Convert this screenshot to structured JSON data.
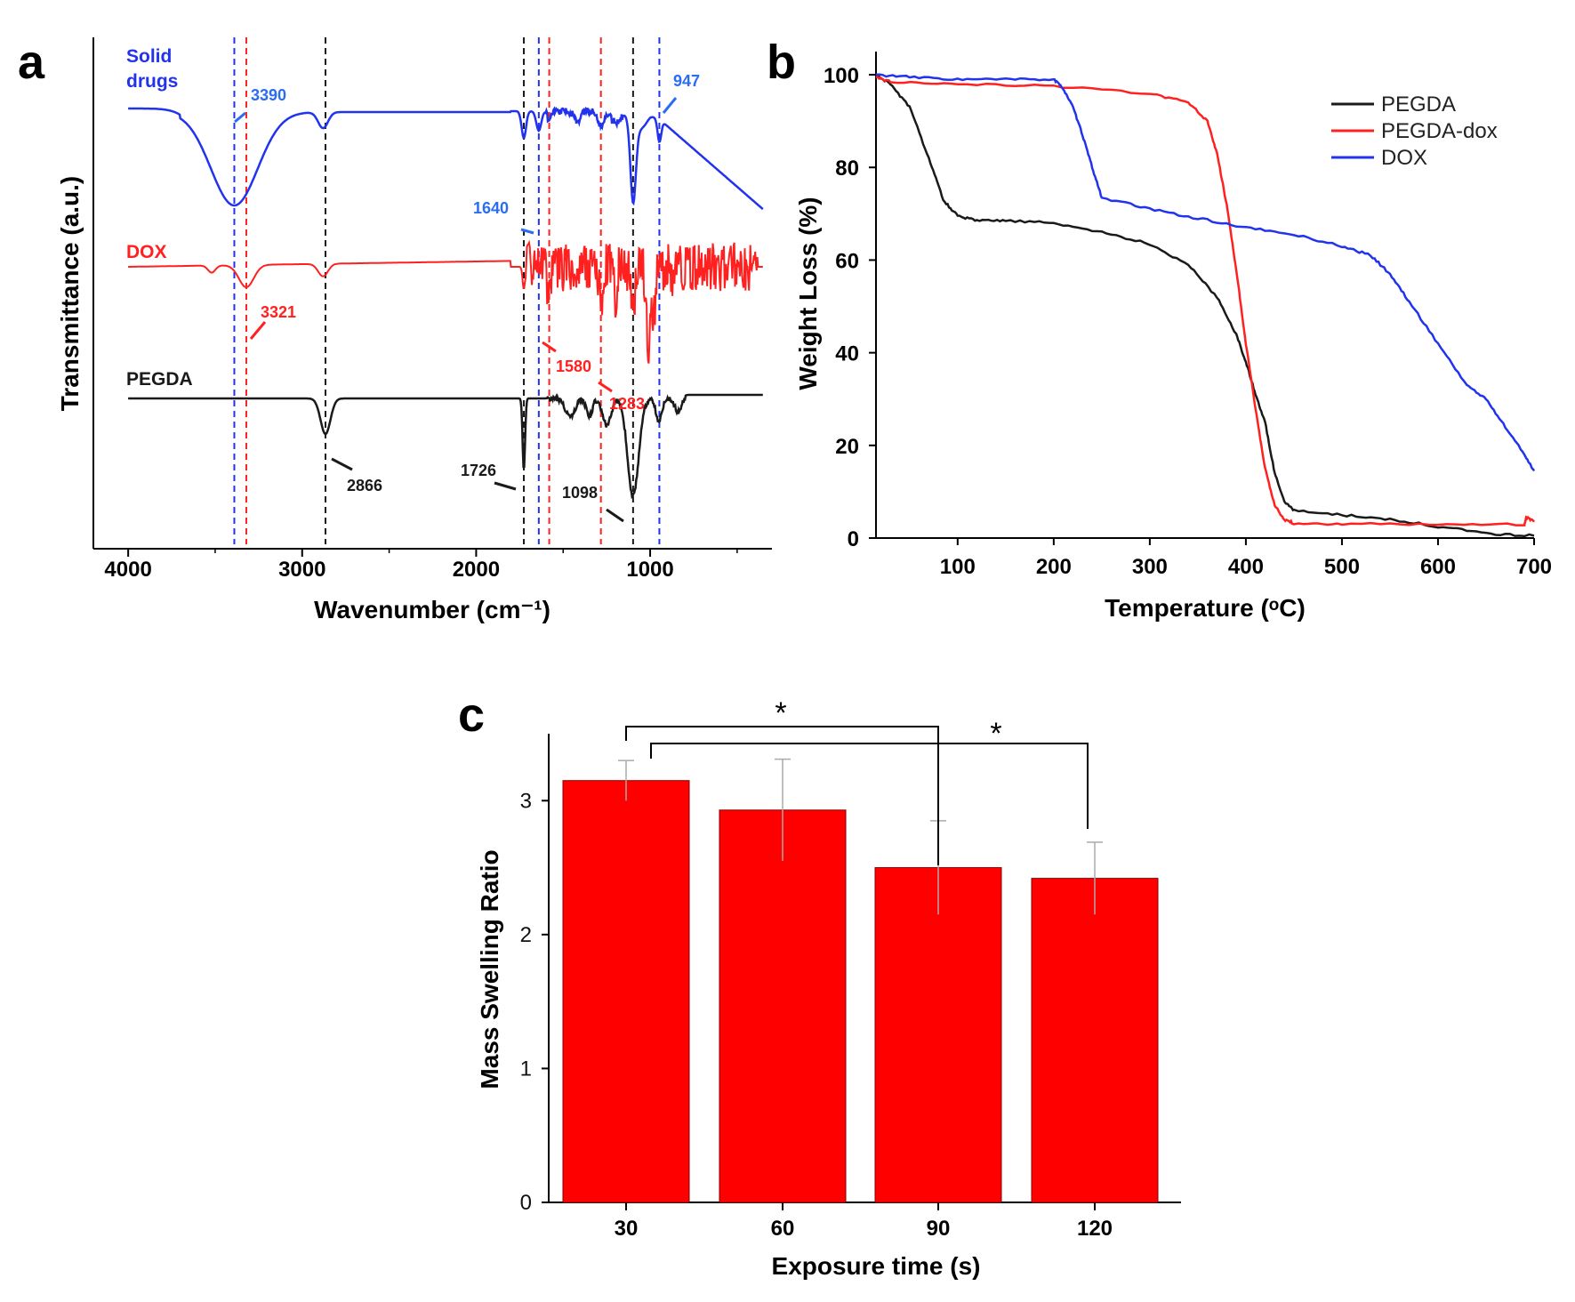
{
  "colors": {
    "black": "#1a1a1a",
    "red": "#ff2020",
    "blue": "#2233ee",
    "ann_blue": "#2a6df4",
    "bar": "#ff0000"
  },
  "chart_data": [
    {
      "panel": "a",
      "type": "line",
      "xlabel": "Wavenumber (cm⁻¹)",
      "ylabel": "Transmittance (a.u.)",
      "xlim": [
        4200,
        300
      ],
      "x_ticks": [
        4000,
        3000,
        2000,
        1000
      ],
      "series": [
        {
          "name": "Solid drugs",
          "label_lines": [
            "Solid",
            "drugs"
          ],
          "color": "blue"
        },
        {
          "name": "DOX",
          "label_lines": [
            "DOX"
          ],
          "color": "red"
        },
        {
          "name": "PEGDA",
          "label_lines": [
            "PEGDA"
          ],
          "color": "black"
        }
      ],
      "peak_lines": [
        {
          "x": 3390,
          "color": "blue"
        },
        {
          "x": 3321,
          "color": "red"
        },
        {
          "x": 2866,
          "color": "black"
        },
        {
          "x": 1726,
          "color": "black"
        },
        {
          "x": 1640,
          "color": "blue"
        },
        {
          "x": 1580,
          "color": "red"
        },
        {
          "x": 1283,
          "color": "red"
        },
        {
          "x": 1098,
          "color": "black"
        },
        {
          "x": 947,
          "color": "blue"
        }
      ],
      "annotations": [
        {
          "text": "3390",
          "color": "ann_blue"
        },
        {
          "text": "947",
          "color": "ann_blue"
        },
        {
          "text": "1640",
          "color": "ann_blue"
        },
        {
          "text": "3321",
          "color": "red"
        },
        {
          "text": "1580",
          "color": "red"
        },
        {
          "text": "1283",
          "color": "red"
        },
        {
          "text": "2866",
          "color": "black"
        },
        {
          "text": "1726",
          "color": "black"
        },
        {
          "text": "1098",
          "color": "black"
        }
      ]
    },
    {
      "panel": "b",
      "type": "line",
      "xlabel": "Temperature (ᵒC)",
      "ylabel": "Weight Loss (%)",
      "xlim": [
        15,
        700
      ],
      "ylim": [
        0,
        105
      ],
      "x_ticks": [
        100,
        200,
        300,
        400,
        500,
        600,
        700
      ],
      "y_ticks": [
        0,
        20,
        40,
        60,
        80,
        100
      ],
      "legend_position": "top-right",
      "series": [
        {
          "name": "PEGDA",
          "color": "black",
          "x": [
            15,
            30,
            50,
            70,
            85,
            100,
            120,
            150,
            200,
            250,
            300,
            340,
            370,
            390,
            400,
            410,
            420,
            430,
            440,
            450,
            500,
            550,
            600,
            650,
            700
          ],
          "y": [
            100,
            98,
            93,
            82,
            73,
            69.5,
            68.5,
            68.5,
            68,
            66,
            63.5,
            59,
            52,
            44,
            38,
            31,
            25,
            14,
            8,
            6,
            5,
            4,
            2.5,
            1,
            0.5
          ]
        },
        {
          "name": "PEGDA-dox",
          "color": "red",
          "x": [
            15,
            30,
            100,
            200,
            300,
            340,
            360,
            370,
            380,
            390,
            400,
            410,
            420,
            430,
            440,
            450,
            500,
            600,
            690,
            692,
            700
          ],
          "y": [
            99.5,
            98.5,
            98,
            97.5,
            96,
            94,
            90,
            83,
            72,
            58,
            42,
            28,
            15,
            7,
            4,
            3.2,
            3,
            3,
            3,
            4.5,
            3.5
          ]
        },
        {
          "name": "DOX",
          "color": "blue",
          "x": [
            15,
            50,
            100,
            150,
            200,
            210,
            220,
            230,
            240,
            250,
            300,
            350,
            400,
            450,
            500,
            530,
            550,
            570,
            600,
            630,
            650,
            670,
            690,
            700
          ],
          "y": [
            100,
            99.5,
            99,
            99,
            99,
            97,
            93,
            87,
            80,
            73.5,
            71,
            69,
            67,
            65.5,
            63,
            61,
            57,
            51,
            42,
            33,
            30,
            24,
            18,
            14.5
          ]
        }
      ]
    },
    {
      "panel": "c",
      "type": "bar",
      "xlabel": "Exposure time (s)",
      "ylabel": "Mass Swelling Ratio",
      "categories": [
        "30",
        "60",
        "90",
        "120"
      ],
      "values": [
        3.15,
        2.93,
        2.5,
        2.42
      ],
      "errors": [
        0.15,
        0.38,
        0.35,
        0.27
      ],
      "ylim": [
        0,
        3.5
      ],
      "y_ticks": [
        0,
        1,
        2,
        3
      ],
      "significance": [
        {
          "from": "30",
          "to": "90",
          "label": "*"
        },
        {
          "from": "30",
          "to": "120",
          "label": "*"
        }
      ]
    }
  ]
}
